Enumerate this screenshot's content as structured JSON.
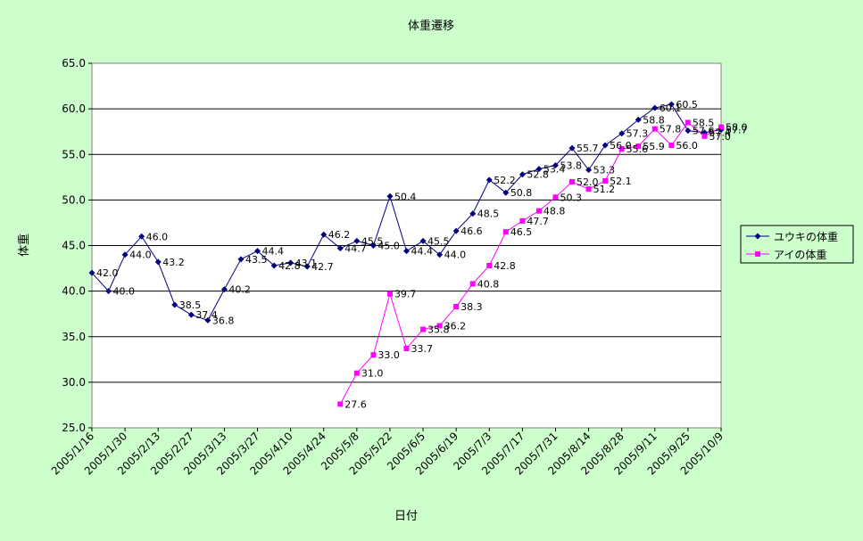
{
  "chart_data": {
    "type": "line",
    "title": "体重遷移",
    "xlabel": "日付",
    "ylabel": "体重",
    "ylim": [
      25.0,
      65.0
    ],
    "ytick_step": 5.0,
    "grid": "horizontal",
    "legend_position": "right",
    "x_tick_labels": [
      "2005/1/16",
      "2005/1/30",
      "2005/2/13",
      "2005/2/27",
      "2005/3/13",
      "2005/3/27",
      "2005/4/10",
      "2005/4/24",
      "2005/5/8",
      "2005/5/22",
      "2005/6/5",
      "2005/6/19",
      "2005/7/3",
      "2005/7/17",
      "2005/7/31",
      "2005/8/14",
      "2005/8/28",
      "2005/9/11",
      "2005/9/25",
      "2005/10/9"
    ],
    "series": [
      {
        "name": "ユウキの体重",
        "color": "#000080",
        "marker": "diamond",
        "points": [
          {
            "date": "2005/1/16",
            "value": 42.0
          },
          {
            "date": "2005/1/23",
            "value": 40.0
          },
          {
            "date": "2005/1/30",
            "value": 44.0
          },
          {
            "date": "2005/2/6",
            "value": 46.0
          },
          {
            "date": "2005/2/13",
            "value": 43.2
          },
          {
            "date": "2005/2/20",
            "value": 38.5
          },
          {
            "date": "2005/2/27",
            "value": 37.4
          },
          {
            "date": "2005/3/6",
            "value": 36.8
          },
          {
            "date": "2005/3/13",
            "value": 40.2
          },
          {
            "date": "2005/3/20",
            "value": 43.5
          },
          {
            "date": "2005/3/27",
            "value": 44.4
          },
          {
            "date": "2005/4/3",
            "value": 42.8
          },
          {
            "date": "2005/4/10",
            "value": 43.1
          },
          {
            "date": "2005/4/17",
            "value": 42.7
          },
          {
            "date": "2005/4/24",
            "value": 46.2
          },
          {
            "date": "2005/5/1",
            "value": 44.7
          },
          {
            "date": "2005/5/8",
            "value": 45.5
          },
          {
            "date": "2005/5/15",
            "value": 45.0
          },
          {
            "date": "2005/5/22",
            "value": 50.4
          },
          {
            "date": "2005/5/29",
            "value": 44.4
          },
          {
            "date": "2005/6/5",
            "value": 45.5
          },
          {
            "date": "2005/6/12",
            "value": 44.0
          },
          {
            "date": "2005/6/19",
            "value": 46.6
          },
          {
            "date": "2005/6/26",
            "value": 48.5
          },
          {
            "date": "2005/7/3",
            "value": 52.2
          },
          {
            "date": "2005/7/10",
            "value": 50.8
          },
          {
            "date": "2005/7/17",
            "value": 52.8
          },
          {
            "date": "2005/7/24",
            "value": 53.4
          },
          {
            "date": "2005/7/31",
            "value": 53.8
          },
          {
            "date": "2005/8/7",
            "value": 55.7
          },
          {
            "date": "2005/8/14",
            "value": 53.3
          },
          {
            "date": "2005/8/21",
            "value": 56.0
          },
          {
            "date": "2005/8/28",
            "value": 57.3
          },
          {
            "date": "2005/9/4",
            "value": 58.8
          },
          {
            "date": "2005/9/11",
            "value": 60.1
          },
          {
            "date": "2005/9/18",
            "value": 60.5
          },
          {
            "date": "2005/9/25",
            "value": 57.6
          },
          {
            "date": "2005/10/2",
            "value": 57.4
          },
          {
            "date": "2005/10/9",
            "value": 57.7
          }
        ]
      },
      {
        "name": "アイの体重",
        "color": "#ff00ff",
        "marker": "square",
        "points": [
          {
            "date": "2005/5/1",
            "value": 27.6
          },
          {
            "date": "2005/5/8",
            "value": 31.0
          },
          {
            "date": "2005/5/15",
            "value": 33.0
          },
          {
            "date": "2005/5/22",
            "value": 39.7
          },
          {
            "date": "2005/5/29",
            "value": 33.7
          },
          {
            "date": "2005/6/5",
            "value": 35.8
          },
          {
            "date": "2005/6/12",
            "value": 36.2
          },
          {
            "date": "2005/6/19",
            "value": 38.3
          },
          {
            "date": "2005/6/26",
            "value": 40.8
          },
          {
            "date": "2005/7/3",
            "value": 42.8
          },
          {
            "date": "2005/7/10",
            "value": 46.5
          },
          {
            "date": "2005/7/17",
            "value": 47.7
          },
          {
            "date": "2005/7/24",
            "value": 48.8
          },
          {
            "date": "2005/7/31",
            "value": 50.3
          },
          {
            "date": "2005/8/7",
            "value": 52.0
          },
          {
            "date": "2005/8/14",
            "value": 51.2
          },
          {
            "date": "2005/8/21",
            "value": 52.1
          },
          {
            "date": "2005/8/28",
            "value": 55.6
          },
          {
            "date": "2005/9/4",
            "value": 55.9
          },
          {
            "date": "2005/9/11",
            "value": 57.8
          },
          {
            "date": "2005/9/18",
            "value": 56.0
          },
          {
            "date": "2005/9/25",
            "value": 58.5
          },
          {
            "date": "2005/10/2",
            "value": 57.0
          },
          {
            "date": "2005/10/9",
            "value": 58.0
          }
        ]
      }
    ]
  }
}
